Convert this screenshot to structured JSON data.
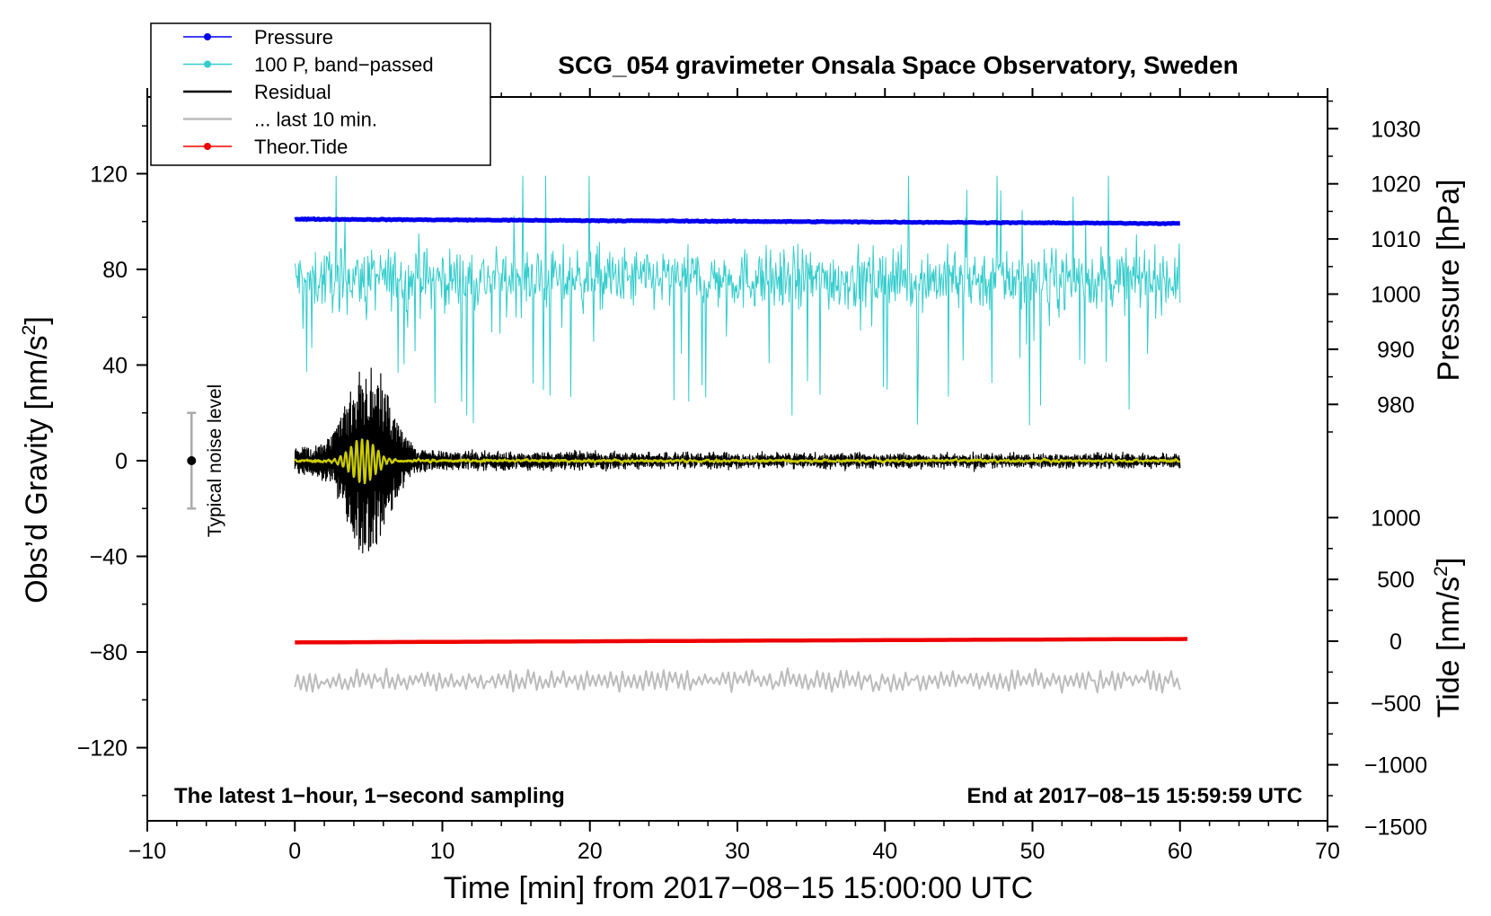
{
  "chart_data": {
    "type": "line",
    "title": "SCG_054 gravimeter Onsala Space Observatory, Sweden",
    "xlabel": "Time [min] from 2017−08−15 15:00:00 UTC",
    "ylabel_left_prefix": "Obs’d Gravity [nm/s",
    "ylabel_left_sup": "2",
    "ylabel_left_suffix": "]",
    "ylabel_right_pressure": "Pressure [hPa]",
    "ylabel_right_tide_prefix": "Tide [nm/s",
    "ylabel_right_tide_sup": "2",
    "ylabel_right_tide_suffix": "]",
    "xlim": [
      -10,
      70
    ],
    "ylim": [
      -150,
      150
    ],
    "xticks": [
      "−10",
      "0",
      "10",
      "20",
      "30",
      "40",
      "50",
      "60",
      "70"
    ],
    "yticks_left": [
      "120",
      "80",
      "40",
      "0",
      "−40",
      "−80",
      "−120"
    ],
    "yticks_pressure": [
      "1030",
      "1020",
      "1010",
      "1000",
      "990",
      "980"
    ],
    "yticks_tide": [
      "1000",
      "500",
      "0",
      "−500",
      "−1000",
      "−1500"
    ],
    "annotation_left": "The latest 1−hour, 1−second sampling",
    "annotation_right": "End at 2017−08−15 15:59:59 UTC",
    "noise_label": "Typical noise level",
    "noise_bar": {
      "x": -7,
      "center": 0,
      "half_range": 20
    },
    "legend": [
      {
        "name": "Pressure",
        "color": "#0000ee",
        "marker": true
      },
      {
        "name": "100 P, band−passed",
        "color": "#33cccc",
        "marker": true
      },
      {
        "name": "Residual",
        "color": "#000000",
        "marker": false
      },
      {
        "name": "... last 10 min.",
        "color": "#bbbbbb",
        "marker": false
      },
      {
        "name": "Theor.Tide",
        "color": "#ee0000",
        "marker": true
      }
    ],
    "series": [
      {
        "name": "Pressure",
        "axis": "pressure_hpa",
        "color": "#0000ee",
        "x": [
          0,
          60
        ],
        "values": [
          1013.6,
          1012.8
        ]
      },
      {
        "name": "100 P, band−passed",
        "axis": "gravity_nm_s2",
        "color": "#33cccc",
        "x_range": [
          0,
          60
        ],
        "baseline": 76,
        "min": 15,
        "max": 119
      },
      {
        "name": "Residual",
        "axis": "gravity_nm_s2",
        "color": "#000000",
        "x_range": [
          0,
          60
        ],
        "baseline": 0,
        "max_amplitude": 43,
        "peak_at_min": 5
      },
      {
        "name": "Residual (smoothed)",
        "axis": "gravity_nm_s2",
        "color": "#cccc00",
        "x_range": [
          0,
          60
        ],
        "baseline": 0
      },
      {
        "name": "... last 10 min.",
        "axis": "gravity_nm_s2",
        "color": "#bbbbbb",
        "x_range": [
          0,
          60
        ],
        "baseline": -92
      },
      {
        "name": "Theor.Tide",
        "axis": "tide_nm_s2",
        "color": "#ee0000",
        "x": [
          0,
          60.5
        ],
        "values": [
          -10,
          18
        ]
      }
    ],
    "pressure_axis_range": [
      970,
      1035
    ],
    "tide_axis_range": [
      -1500,
      1100
    ],
    "grid": false,
    "legend_position": "top-left"
  }
}
